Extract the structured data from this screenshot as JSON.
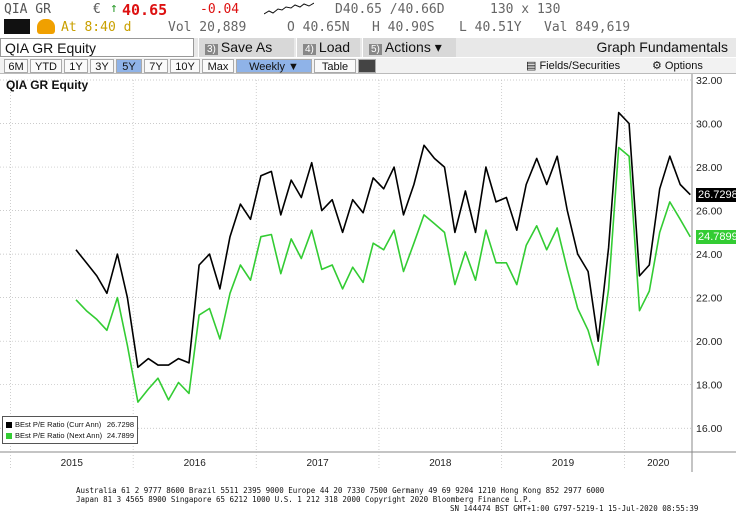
{
  "quote": {
    "ticker": "QIA GR",
    "currency": "€",
    "arrow": "↑",
    "last": "40.65",
    "change": "-0.04",
    "time": "At 8:40 d",
    "volume": "Vol 20,889",
    "hilo": "D40.65 /40.66D",
    "size": "130 x 130",
    "open": "O 40.65N",
    "high": "H 40.90S",
    "low": "L 40.51Y",
    "value": "Val 849,619"
  },
  "toolbar": {
    "security": "QIA GR Equity",
    "save_num": "3)",
    "save_as": "Save As",
    "load_num": "4)",
    "load": "Load",
    "actions_num": "5)",
    "actions": "Actions",
    "caret": "▾",
    "graph": "Graph Fundamentals"
  },
  "range": {
    "buttons": [
      "6M",
      "YTD",
      "1Y",
      "3Y",
      "5Y",
      "7Y",
      "10Y",
      "Max"
    ],
    "active": "5Y",
    "period": "Weekly",
    "period_caret": "▼",
    "table": "Table",
    "fields": "Fields/Securities",
    "options": "Options"
  },
  "colors": {
    "curr": "#000000",
    "next": "#33cc33",
    "accent": "#8fb3e8"
  },
  "icons": {
    "fields": "chart-icon",
    "options": "gear-icon"
  },
  "chart_data": {
    "type": "line",
    "title": "QIA GR Equity",
    "ylim": [
      15,
      32
    ],
    "yticks": [
      "16.00",
      "18.00",
      "20.00",
      "22.00",
      "24.00",
      "26.00",
      "28.00",
      "30.00",
      "32.00"
    ],
    "x_labels": [
      "2015",
      "2016",
      "2017",
      "2018",
      "2019",
      "2020"
    ],
    "grid": true,
    "legend_position": "bottom-left",
    "x": [
      "2015-07",
      "2015-08",
      "2015-09",
      "2015-10",
      "2015-11",
      "2015-12",
      "2016-01",
      "2016-02",
      "2016-03",
      "2016-04",
      "2016-05",
      "2016-06",
      "2016-07",
      "2016-08",
      "2016-09",
      "2016-10",
      "2016-11",
      "2016-12",
      "2017-01",
      "2017-02",
      "2017-03",
      "2017-04",
      "2017-05",
      "2017-06",
      "2017-07",
      "2017-08",
      "2017-09",
      "2017-10",
      "2017-11",
      "2017-12",
      "2018-01",
      "2018-02",
      "2018-03",
      "2018-04",
      "2018-05",
      "2018-06",
      "2018-07",
      "2018-08",
      "2018-09",
      "2018-10",
      "2018-11",
      "2018-12",
      "2019-01",
      "2019-02",
      "2019-03",
      "2019-04",
      "2019-05",
      "2019-06",
      "2019-07",
      "2019-08",
      "2019-09",
      "2019-10",
      "2019-11",
      "2019-12",
      "2020-01",
      "2020-02",
      "2020-03",
      "2020-04",
      "2020-05",
      "2020-06",
      "2020-07"
    ],
    "series": [
      {
        "name": "BEst P/E Ratio (Curr Ann)",
        "last_label": "26.7298",
        "values": [
          24.2,
          23.6,
          23.0,
          22.2,
          24.0,
          22.0,
          18.8,
          19.2,
          18.9,
          18.9,
          19.2,
          19.0,
          23.5,
          24.0,
          22.4,
          24.8,
          26.3,
          25.6,
          27.6,
          27.8,
          25.8,
          27.4,
          26.6,
          28.2,
          26.0,
          26.5,
          25.0,
          26.5,
          25.9,
          27.5,
          27.0,
          28.0,
          25.8,
          27.2,
          29.0,
          28.4,
          28.0,
          25.0,
          26.9,
          25.0,
          28.0,
          26.4,
          26.6,
          25.1,
          27.2,
          28.4,
          27.2,
          28.5,
          26.0,
          24.0,
          23.2,
          20.0,
          24.3,
          30.5,
          30.0,
          23.0,
          23.5,
          27.0,
          28.5,
          27.2,
          26.7298
        ]
      },
      {
        "name": "BEst P/E Ratio (Next Ann)",
        "last_label": "24.7899",
        "values": [
          21.9,
          21.4,
          21.0,
          20.5,
          22.0,
          19.8,
          17.2,
          17.8,
          18.3,
          17.3,
          18.1,
          17.6,
          21.2,
          21.5,
          20.1,
          22.2,
          23.5,
          22.8,
          24.8,
          24.9,
          23.1,
          24.7,
          23.8,
          25.1,
          23.3,
          23.5,
          22.4,
          23.4,
          22.7,
          24.5,
          24.2,
          25.1,
          23.2,
          24.5,
          25.8,
          25.4,
          25.0,
          22.6,
          24.1,
          22.8,
          25.1,
          23.6,
          23.6,
          22.6,
          24.4,
          25.3,
          24.2,
          25.2,
          23.3,
          21.5,
          20.5,
          18.9,
          22.4,
          28.9,
          28.5,
          21.4,
          22.3,
          25.0,
          26.4,
          25.6,
          24.7899
        ]
      }
    ]
  },
  "footer": {
    "line1": "Australia 61 2 9777 8600 Brazil 5511 2395 9000 Europe 44 20 7330 7500 Germany 49 69 9204 1210 Hong Kong 852 2977 6000",
    "line2": "Japan 81 3 4565 8900        Singapore 65 6212 1000      U.S. 1 212 318 2000        Copyright 2020 Bloomberg Finance L.P.",
    "line3": "SN 144474 BST  GMT+1:00 G797-5219-1 15-Jul-2020 08:55:39"
  }
}
